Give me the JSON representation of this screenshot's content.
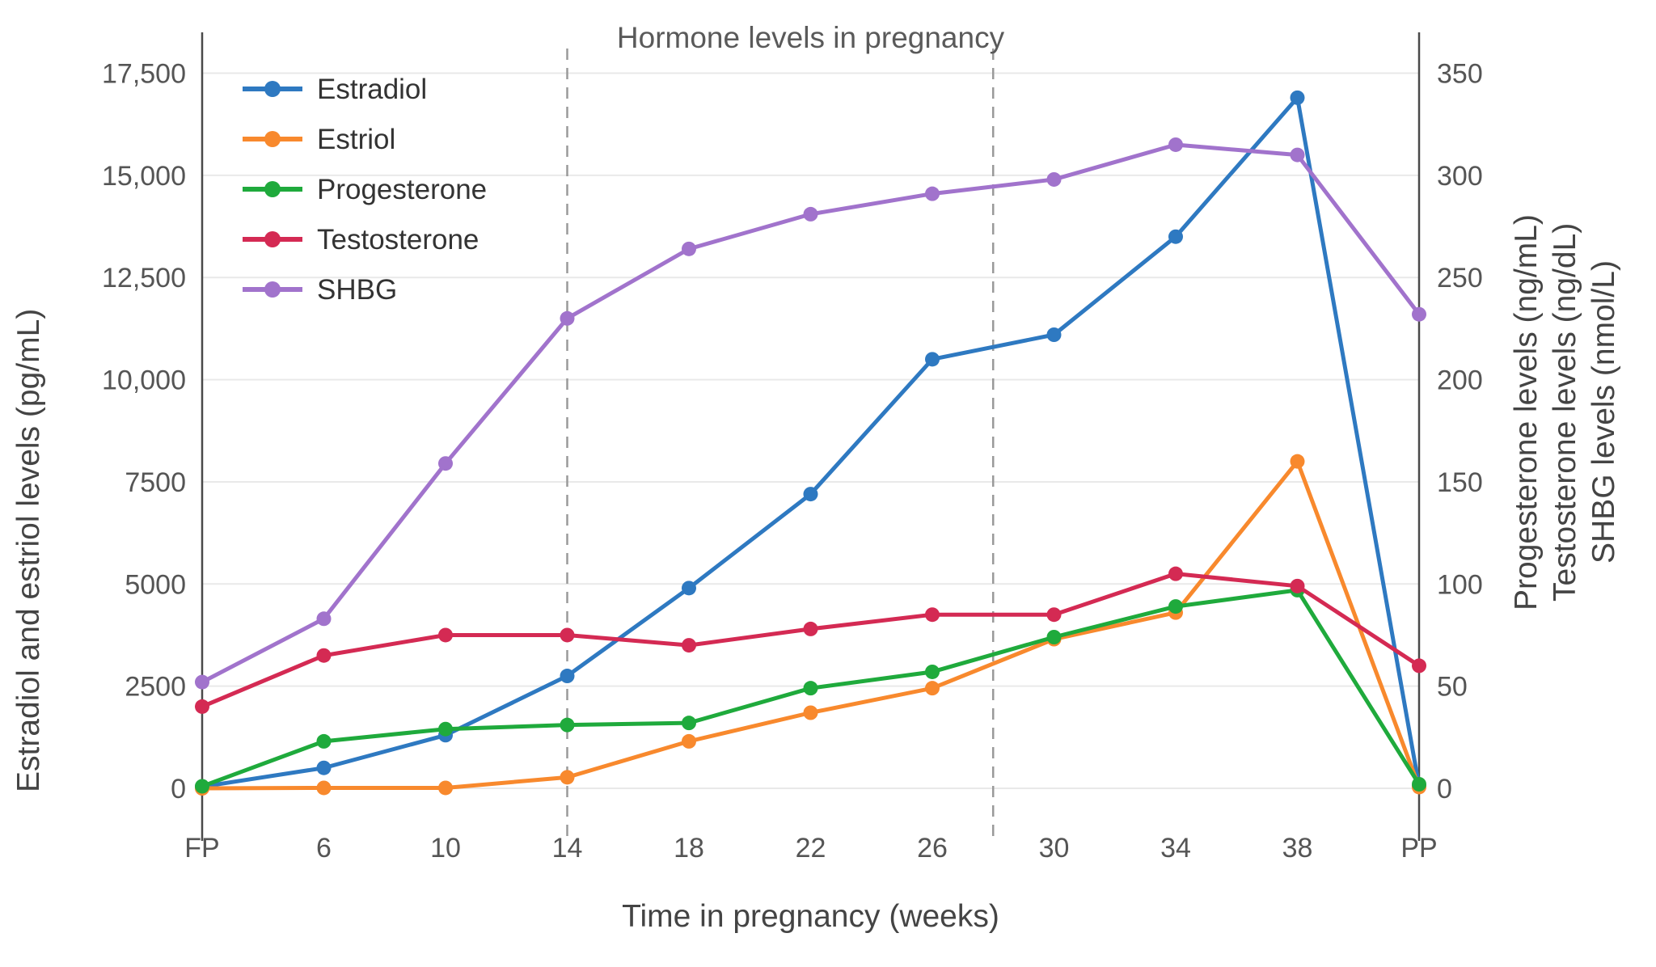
{
  "page": {
    "background": "#ffffff"
  },
  "chart_data": {
    "type": "line",
    "title": "Hormone levels in pregnancy",
    "xlabel": "Time in pregnancy (weeks)",
    "ylabel_left": "Estradiol and estriol levels (pg/mL)",
    "ylabel_right_lines": [
      "Progesterone levels (ng/mL)",
      "Testosterone levels (ng/dL)",
      "SHBG levels (nmol/L)"
    ],
    "categories": [
      "FP",
      "6",
      "10",
      "14",
      "18",
      "22",
      "26",
      "30",
      "34",
      "38",
      "PP"
    ],
    "left_axis": {
      "range": [
        0,
        18500
      ],
      "tick_values": [
        0,
        2500,
        5000,
        7500,
        10000,
        12500,
        15000,
        17500
      ],
      "tick_labels": [
        "0",
        "2500",
        "5000",
        "7500",
        "10,000",
        "12,500",
        "15,000",
        "17,500"
      ]
    },
    "right_axis": {
      "range": [
        0,
        370
      ],
      "tick_values": [
        0,
        50,
        100,
        150,
        200,
        250,
        300,
        350
      ],
      "tick_labels": [
        "0",
        "50",
        "100",
        "150",
        "200",
        "250",
        "300",
        "350"
      ]
    },
    "grid": true,
    "legend_position": "top-left-inside",
    "dashed_line_x_indices": [
      3,
      6.5
    ],
    "boundary_line_x_indices": [
      0,
      10
    ],
    "series": [
      {
        "name": "Estradiol",
        "axis": "left",
        "color": "#2e79c1",
        "values": [
          40,
          500,
          1300,
          2750,
          4900,
          7200,
          10500,
          11100,
          13500,
          16900,
          50
        ]
      },
      {
        "name": "Estriol",
        "axis": "left",
        "color": "#f8892d",
        "values": [
          0,
          10,
          10,
          270,
          1150,
          1850,
          2450,
          3650,
          4300,
          8000,
          30
        ]
      },
      {
        "name": "Progesterone",
        "axis": "right",
        "color": "#1faa3c",
        "values": [
          1,
          23,
          29,
          31,
          32,
          49,
          57,
          74,
          89,
          97,
          2
        ]
      },
      {
        "name": "Testosterone",
        "axis": "right",
        "color": "#d42a53",
        "values": [
          40,
          65,
          75,
          75,
          70,
          78,
          85,
          85,
          105,
          99,
          60
        ]
      },
      {
        "name": "SHBG",
        "axis": "right",
        "color": "#a173cc",
        "values": [
          52,
          83,
          159,
          230,
          264,
          281,
          291,
          298,
          315,
          310,
          232
        ]
      }
    ],
    "style": {
      "gridline_color": "#e9e9e9",
      "axis_line_color": "#4a4a4a",
      "dashed_line_color": "#9a9a9a",
      "tick_text_color": "#555555",
      "legend_text_color": "#333333"
    }
  }
}
